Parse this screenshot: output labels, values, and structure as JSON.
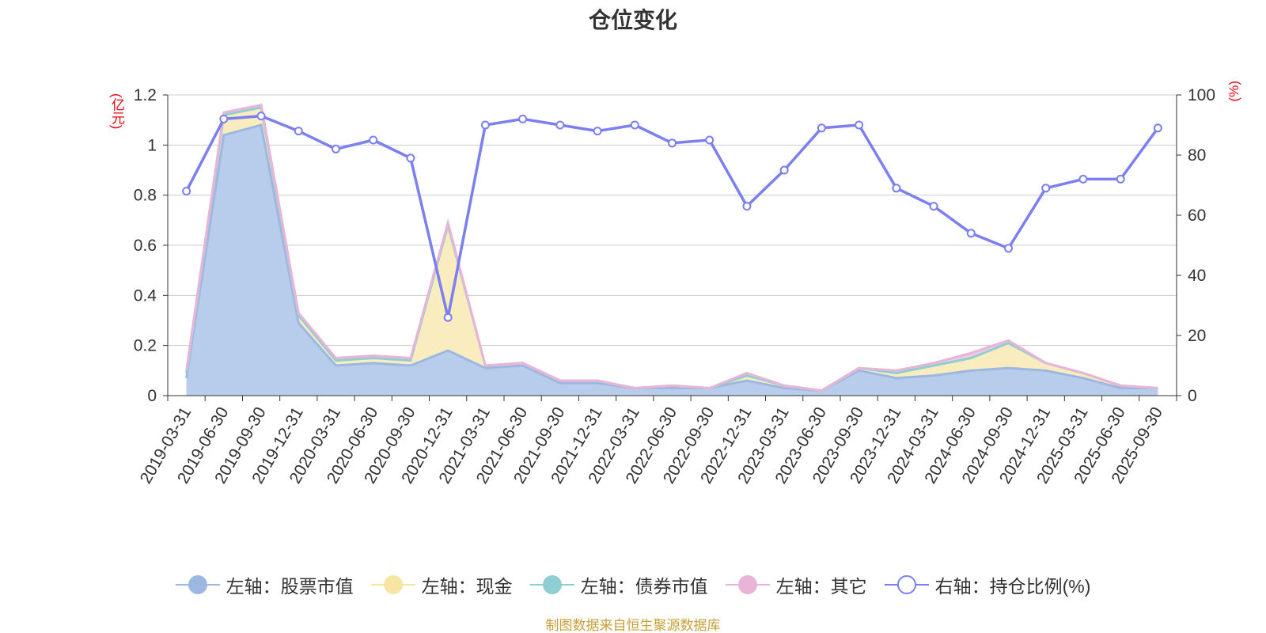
{
  "page": {
    "title": "仓位变化",
    "source_note": "制图数据来自恒生聚源数据库"
  },
  "chart_data": {
    "type": "area",
    "title": "仓位变化",
    "left_axis": {
      "unit_label": "(亿元)",
      "range": [
        0,
        1.2
      ],
      "ticks": [
        "0",
        "0.2",
        "0.4",
        "0.6",
        "0.8",
        "1",
        "1.2"
      ]
    },
    "right_axis": {
      "unit_label": "(%)",
      "range": [
        0,
        100
      ],
      "ticks": [
        "0",
        "20",
        "40",
        "60",
        "80",
        "100"
      ]
    },
    "grid": true,
    "legend_position": "bottom",
    "categories": [
      "2019-03-31",
      "2019-06-30",
      "2019-09-30",
      "2019-12-31",
      "2020-03-31",
      "2020-06-30",
      "2020-09-30",
      "2020-12-31",
      "2021-03-31",
      "2021-06-30",
      "2021-09-30",
      "2021-12-31",
      "2022-03-31",
      "2022-06-30",
      "2022-09-30",
      "2022-12-31",
      "2023-03-31",
      "2023-06-30",
      "2023-09-30",
      "2023-12-31",
      "2024-03-31",
      "2024-06-30",
      "2024-09-30",
      "2024-12-31",
      "2025-03-31",
      "2025-06-30",
      "2025-09-30"
    ],
    "series": [
      {
        "name": "左轴：股票市值",
        "axis": "left",
        "kind": "stacked-area",
        "color": "#9db8e0",
        "fill": "#b8cceb",
        "values": [
          0.07,
          1.04,
          1.08,
          0.29,
          0.12,
          0.13,
          0.12,
          0.18,
          0.11,
          0.12,
          0.05,
          0.05,
          0.03,
          0.03,
          0.03,
          0.06,
          0.03,
          0.02,
          0.1,
          0.07,
          0.08,
          0.1,
          0.11,
          0.1,
          0.07,
          0.03,
          0.03
        ]
      },
      {
        "name": "左轴：现金",
        "axis": "left",
        "kind": "stacked-area",
        "color": "#f7e6a3",
        "fill": "#f9edbf",
        "values": [
          0.02,
          0.08,
          0.07,
          0.03,
          0.02,
          0.02,
          0.02,
          0.5,
          0.01,
          0.01,
          0.01,
          0.01,
          0.0,
          0.01,
          0.0,
          0.02,
          0.01,
          0.0,
          0.01,
          0.02,
          0.04,
          0.05,
          0.1,
          0.03,
          0.02,
          0.01,
          0.0
        ]
      },
      {
        "name": "左轴：债券市值",
        "axis": "left",
        "kind": "stacked-area",
        "color": "#8fcfd4",
        "fill": "#a9dbdf",
        "values": [
          0,
          0,
          0,
          0,
          0,
          0,
          0,
          0,
          0,
          0,
          0,
          0,
          0,
          0,
          0,
          0,
          0,
          0,
          0,
          0,
          0,
          0,
          0,
          0,
          0,
          0,
          0
        ]
      },
      {
        "name": "左轴：其它",
        "axis": "left",
        "kind": "stacked-area",
        "color": "#e8b4d8",
        "fill": "#f0cbe4",
        "values": [
          0.01,
          0.01,
          0.01,
          0.01,
          0.01,
          0.01,
          0.01,
          0.01,
          0.0,
          0.0,
          0.0,
          0.0,
          0.0,
          0.0,
          0.0,
          0.01,
          0.0,
          0.0,
          0.0,
          0.01,
          0.01,
          0.02,
          0.01,
          0.0,
          0.0,
          0.0,
          0.0
        ]
      },
      {
        "name": "右轴：持仓比例(%)",
        "axis": "right",
        "kind": "line",
        "color": "#7b7ff0",
        "values": [
          68,
          92,
          93,
          88,
          82,
          85,
          79,
          26,
          90,
          92,
          90,
          88,
          90,
          84,
          85,
          63,
          75,
          89,
          90,
          69,
          63,
          54,
          49,
          69,
          72,
          72,
          89
        ]
      }
    ]
  }
}
